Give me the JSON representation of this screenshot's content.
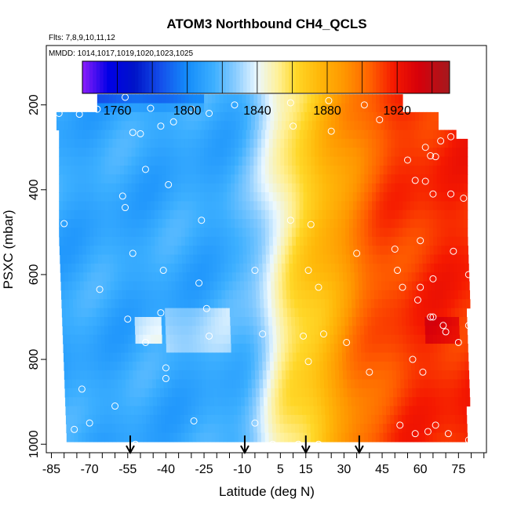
{
  "chart_data": {
    "type": "heatmap",
    "title": "ATOM3 Northbound CH4_QCLS",
    "flights_note": "Flts: 7,8,9,10,11,12",
    "dates_note": "MMDD: 1014,1017,1019,1020,1023,1025",
    "xlabel": "Latitude (deg N)",
    "ylabel": "PSXC (mbar)",
    "xlim": [
      -87,
      86
    ],
    "ylim": [
      1020,
      60
    ],
    "x_ticks": [
      -85,
      -70,
      -55,
      -40,
      -25,
      -10,
      5,
      15,
      30,
      45,
      60,
      75
    ],
    "x_tick_labels": [
      "-85",
      "-70",
      "-55",
      "-40",
      "-25",
      "-10",
      "5",
      "15",
      "30",
      "45",
      "60",
      "75"
    ],
    "y_ticks": [
      200,
      400,
      600,
      800,
      1000
    ],
    "y_tick_labels": [
      "200",
      "400",
      "600",
      "800",
      "1000"
    ],
    "colorbar": {
      "min": 1740,
      "max": 1950,
      "step": 10,
      "ticks": [
        1760,
        1800,
        1840,
        1880,
        1920
      ],
      "tick_labels": [
        "1760",
        "1800",
        "1840",
        "1880",
        "1920"
      ]
    },
    "arrows_latitude": [
      -54,
      -9,
      15,
      36
    ],
    "field_description": "CH4 rises from ~1800 ppb in the southern hemisphere to ~1920+ ppb north of 50N; sharp gradient near the equator (-5 to 10N)",
    "observations": [
      {
        "lat": -67,
        "p": 210
      },
      {
        "lat": -56,
        "p": 182
      },
      {
        "lat": -46,
        "p": 208
      },
      {
        "lat": -30,
        "p": 210
      },
      {
        "lat": -13,
        "p": 200
      },
      {
        "lat": 9,
        "p": 195
      },
      {
        "lat": 24,
        "p": 190
      },
      {
        "lat": 38,
        "p": 200
      },
      {
        "lat": -82,
        "p": 220
      },
      {
        "lat": -74,
        "p": 222
      },
      {
        "lat": -53,
        "p": 265
      },
      {
        "lat": -50,
        "p": 268
      },
      {
        "lat": -42,
        "p": 250
      },
      {
        "lat": -37,
        "p": 240
      },
      {
        "lat": -23,
        "p": 220
      },
      {
        "lat": 10,
        "p": 250
      },
      {
        "lat": 25,
        "p": 262
      },
      {
        "lat": 44,
        "p": 235
      },
      {
        "lat": -85,
        "p": 308
      },
      {
        "lat": -48,
        "p": 352
      },
      {
        "lat": -39,
        "p": 388
      },
      {
        "lat": 55,
        "p": 330
      },
      {
        "lat": 68,
        "p": 285
      },
      {
        "lat": 72,
        "p": 275
      },
      {
        "lat": 76,
        "p": 268
      },
      {
        "lat": 62,
        "p": 300
      },
      {
        "lat": 64,
        "p": 320
      },
      {
        "lat": 66,
        "p": 322
      },
      {
        "lat": 58,
        "p": 378
      },
      {
        "lat": 62,
        "p": 380
      },
      {
        "lat": 65,
        "p": 410
      },
      {
        "lat": 72,
        "p": 410
      },
      {
        "lat": 77,
        "p": 420
      },
      {
        "lat": -57,
        "p": 415
      },
      {
        "lat": -56,
        "p": 442
      },
      {
        "lat": -80,
        "p": 480
      },
      {
        "lat": -26,
        "p": 472
      },
      {
        "lat": 9,
        "p": 472
      },
      {
        "lat": 17,
        "p": 482
      },
      {
        "lat": 35,
        "p": 550
      },
      {
        "lat": 50,
        "p": 540
      },
      {
        "lat": 60,
        "p": 520
      },
      {
        "lat": 73,
        "p": 545
      },
      {
        "lat": -53,
        "p": 550
      },
      {
        "lat": -41,
        "p": 590
      },
      {
        "lat": -5,
        "p": 590
      },
      {
        "lat": -27,
        "p": 620
      },
      {
        "lat": 16,
        "p": 590
      },
      {
        "lat": 51,
        "p": 590
      },
      {
        "lat": 53,
        "p": 630
      },
      {
        "lat": 60,
        "p": 630
      },
      {
        "lat": 65,
        "p": 610
      },
      {
        "lat": 79,
        "p": 600
      },
      {
        "lat": -66,
        "p": 635
      },
      {
        "lat": 20,
        "p": 630
      },
      {
        "lat": -42,
        "p": 690
      },
      {
        "lat": -55,
        "p": 705
      },
      {
        "lat": -24,
        "p": 680
      },
      {
        "lat": 59,
        "p": 660
      },
      {
        "lat": 64,
        "p": 700
      },
      {
        "lat": 65,
        "p": 700
      },
      {
        "lat": 69,
        "p": 720
      },
      {
        "lat": 79,
        "p": 720
      },
      {
        "lat": -23,
        "p": 745
      },
      {
        "lat": -2,
        "p": 740
      },
      {
        "lat": 14,
        "p": 745
      },
      {
        "lat": 22,
        "p": 740
      },
      {
        "lat": 31,
        "p": 760
      },
      {
        "lat": -48,
        "p": 760
      },
      {
        "lat": 70,
        "p": 735
      },
      {
        "lat": 75,
        "p": 760
      },
      {
        "lat": -40,
        "p": 820
      },
      {
        "lat": 16,
        "p": 805
      },
      {
        "lat": 40,
        "p": 830
      },
      {
        "lat": 57,
        "p": 800
      },
      {
        "lat": 61,
        "p": 830
      },
      {
        "lat": -40,
        "p": 845
      },
      {
        "lat": -73,
        "p": 870
      },
      {
        "lat": -60,
        "p": 910
      },
      {
        "lat": -29,
        "p": 945
      },
      {
        "lat": -5,
        "p": 950
      },
      {
        "lat": -70,
        "p": 950
      },
      {
        "lat": -76,
        "p": 965
      },
      {
        "lat": 52,
        "p": 955
      },
      {
        "lat": 58,
        "p": 975
      },
      {
        "lat": 63,
        "p": 970
      },
      {
        "lat": 66,
        "p": 955
      },
      {
        "lat": 71,
        "p": 975
      },
      {
        "lat": 79,
        "p": 990
      },
      {
        "lat": -52,
        "p": 1000
      },
      {
        "lat": -43,
        "p": 1005
      },
      {
        "lat": -38,
        "p": 1005
      },
      {
        "lat": -28,
        "p": 1005
      },
      {
        "lat": -17,
        "p": 1005
      },
      {
        "lat": 2,
        "p": 1000
      },
      {
        "lat": 12,
        "p": 1000
      },
      {
        "lat": 20,
        "p": 1000
      },
      {
        "lat": 30,
        "p": 1005
      },
      {
        "lat": 39,
        "p": 1005
      },
      {
        "lat": -86,
        "p": 1005
      }
    ]
  }
}
